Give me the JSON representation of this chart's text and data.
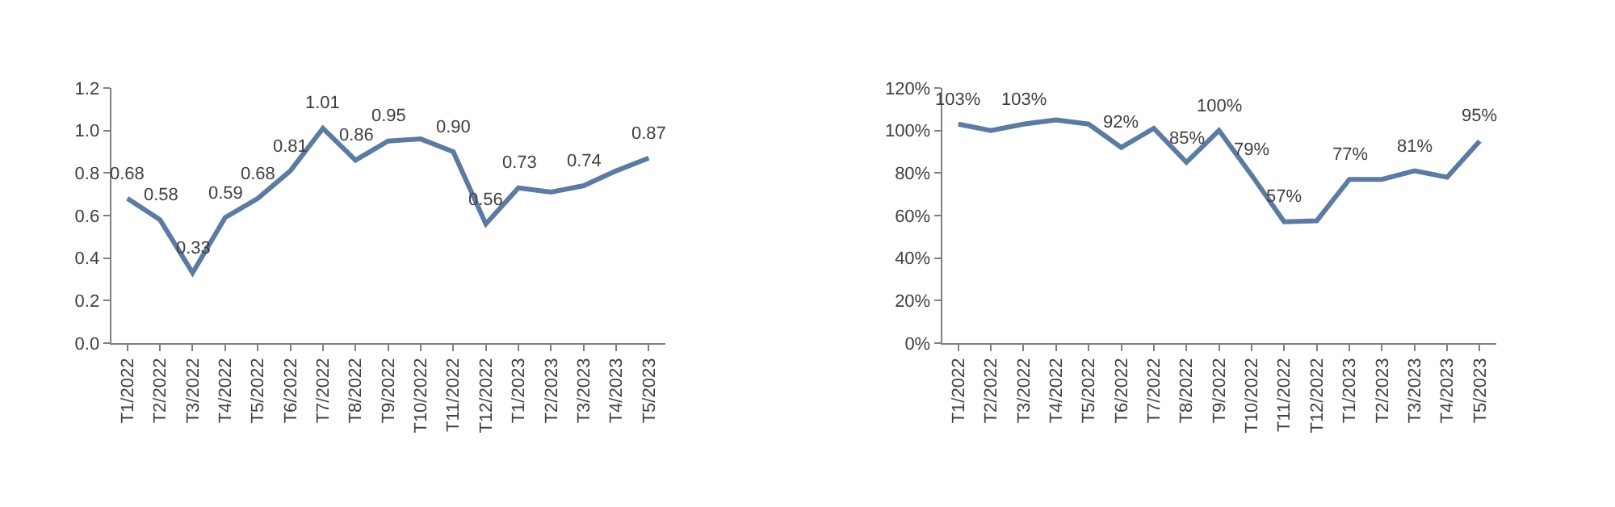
{
  "chart_data": [
    {
      "type": "line",
      "categories": [
        "T1/2022",
        "T2/2022",
        "T3/2022",
        "T4/2022",
        "T5/2022",
        "T6/2022",
        "T7/2022",
        "T8/2022",
        "T9/2022",
        "T10/2022",
        "T11/2022",
        "T12/2022",
        "T1/2023",
        "T2/2023",
        "T3/2023",
        "T4/2023",
        "T5/2023"
      ],
      "series": [
        {
          "color": "#5b7ba3",
          "values": [
            0.68,
            0.58,
            0.33,
            0.59,
            0.68,
            0.81,
            1.01,
            0.86,
            0.95,
            0.96,
            0.9,
            0.56,
            0.73,
            0.71,
            0.74,
            0.81,
            0.87
          ],
          "value_labels": [
            "0.68",
            "0.58",
            "0.33",
            "0.59",
            "0.68",
            "0.81",
            "1.01",
            "0.86",
            "0.95",
            null,
            "0.90",
            "0.56",
            "0.73",
            null,
            "0.74",
            null,
            "0.87"
          ]
        }
      ],
      "ylim": [
        0,
        1.2
      ],
      "yticks": [
        {
          "value": 0,
          "label": "0.0"
        },
        {
          "value": 0.2,
          "label": "0.2"
        },
        {
          "value": 0.4,
          "label": "0.4"
        },
        {
          "value": 0.6,
          "label": "0.6"
        },
        {
          "value": 0.8,
          "label": "0.8"
        },
        {
          "value": 1.0,
          "label": "1.0"
        },
        {
          "value": 1.2,
          "label": "1.2"
        }
      ],
      "marker": "none",
      "line_style": "solid"
    },
    {
      "type": "line",
      "categories": [
        "T1/2022",
        "T2/2022",
        "T3/2022",
        "T4/2022",
        "T5/2022",
        "T6/2022",
        "T7/2022",
        "T8/2022",
        "T9/2022",
        "T10/2022",
        "T11/2022",
        "T12/2022",
        "T1/2023",
        "T2/2023",
        "T3/2023",
        "T4/2023",
        "T5/2023"
      ],
      "series": [
        {
          "color": "#5b7ba3",
          "values": [
            103,
            100,
            103,
            105,
            103,
            92,
            101,
            85,
            100,
            79,
            57,
            57.5,
            77,
            77,
            81,
            78,
            95
          ],
          "value_labels": [
            "103%",
            null,
            "103%",
            null,
            null,
            "92%",
            null,
            "85%",
            "100%",
            "79%",
            "57%",
            null,
            "77%",
            null,
            "81%",
            null,
            "95%"
          ]
        }
      ],
      "ylim": [
        0,
        120
      ],
      "yticks": [
        {
          "value": 0,
          "label": "0%"
        },
        {
          "value": 20,
          "label": "20%"
        },
        {
          "value": 40,
          "label": "40%"
        },
        {
          "value": 60,
          "label": "60%"
        },
        {
          "value": 80,
          "label": "80%"
        },
        {
          "value": 100,
          "label": "100%"
        },
        {
          "value": 120,
          "label": "120%"
        }
      ],
      "marker": "none",
      "line_style": "solid"
    }
  ]
}
